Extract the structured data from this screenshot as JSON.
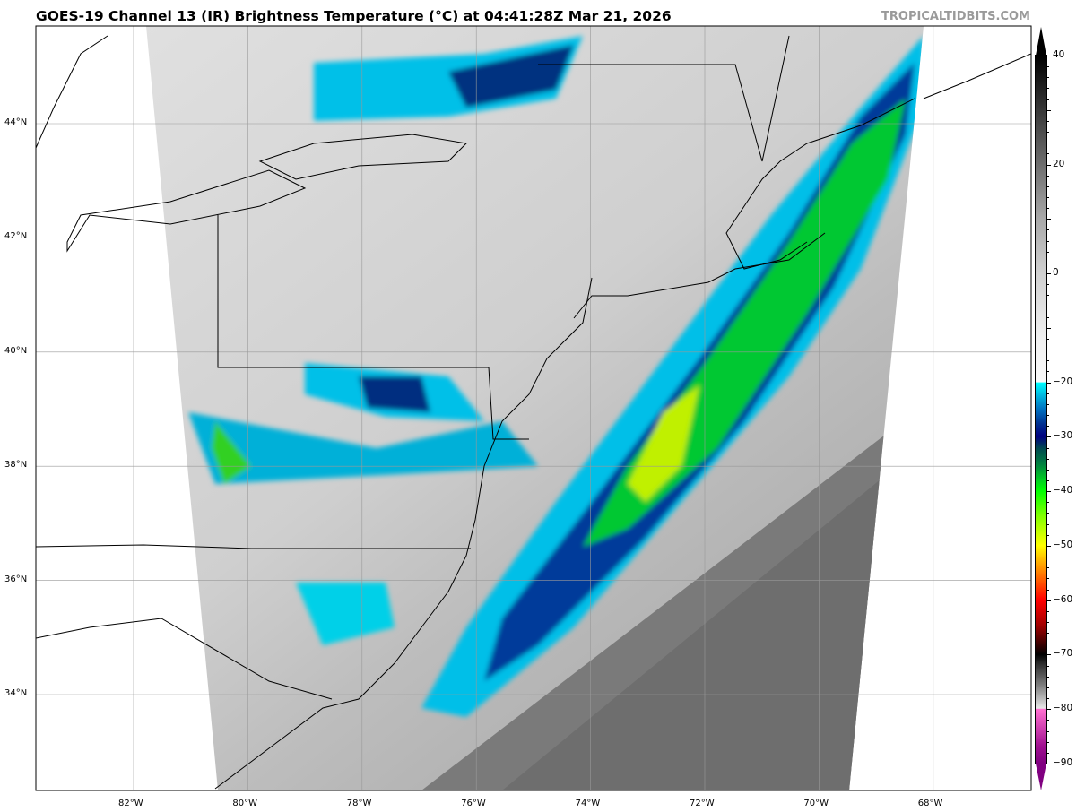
{
  "title": "GOES-19 Channel 13 (IR) Brightness Temperature (°C) at 04:41:28Z Mar 21, 2026",
  "credit": "TROPICALTIDBITS.COM",
  "map": {
    "longitude_ticks": [
      "82°W",
      "80°W",
      "78°W",
      "76°W",
      "74°W",
      "72°W",
      "70°W",
      "68°W"
    ],
    "latitude_ticks": [
      "44°N",
      "42°N",
      "40°N",
      "38°N",
      "36°N",
      "34°N"
    ],
    "gridlines": true
  },
  "colorbar": {
    "range": [
      -90,
      40
    ],
    "labels": [
      "40",
      "20",
      "0",
      "−20",
      "−30",
      "−40",
      "−50",
      "−60",
      "−70",
      "−80",
      "−90"
    ],
    "colors": {
      "warm": "#000000",
      "neutral": "#d0d0d0",
      "cold_start": "#00ffff",
      "deep": "#000080",
      "green": "#00ff00",
      "yellow": "#ffff00",
      "red": "#ff0000",
      "pink": "#ff70d0",
      "purple": "#800080"
    }
  }
}
